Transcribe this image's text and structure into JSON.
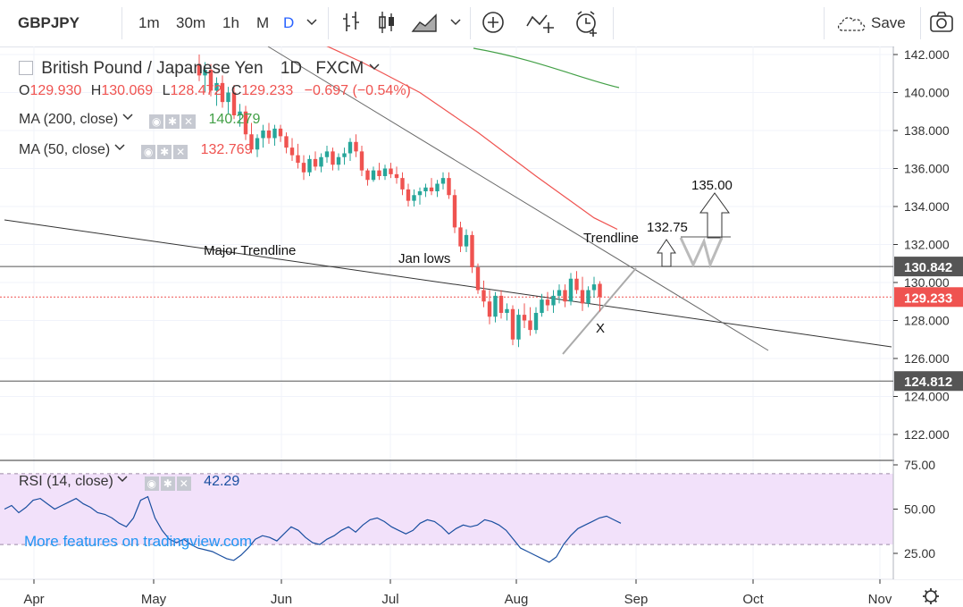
{
  "toolbar": {
    "symbol": "GBPJPY",
    "intervals": [
      "1m",
      "30m",
      "1h",
      "M",
      "D"
    ],
    "active_interval": "D",
    "save_label": "Save"
  },
  "legend": {
    "title": "British Pound / Japanese Yen",
    "timeframe": "1D",
    "exchange": "FXCM",
    "ohlc": {
      "o_label": "O",
      "o": "129.930",
      "h_label": "H",
      "h": "130.069",
      "l_label": "L",
      "l": "128.472",
      "c_label": "C",
      "c": "129.233",
      "change": "−0.697 (−0.54%)"
    },
    "ma200": {
      "label": "MA (200, close)",
      "value": "140.279"
    },
    "ma50": {
      "label": "MA (50, close)",
      "value": "132.769"
    },
    "rsi": {
      "label": "RSI (14, close)",
      "value": "42.29"
    }
  },
  "watermark": "More features on tradingview.com",
  "annotations": {
    "major_trendline": "Major Trendline",
    "jan_lows": "Jan lows",
    "trendline": "Trendline",
    "target1": "132.75",
    "target2": "135.00",
    "x_mark": "X"
  },
  "chart_data": {
    "type": "candlestick",
    "symbol": "GBPJPY",
    "price_axis": {
      "ticks": [
        "142.000",
        "140.000",
        "138.000",
        "136.000",
        "134.000",
        "132.000",
        "130.000",
        "128.000",
        "126.000",
        "124.000",
        "122.000"
      ],
      "range": [
        120.5,
        142.6
      ]
    },
    "time_axis": {
      "ticks": [
        "Apr",
        "May",
        "Jun",
        "Jul",
        "Aug",
        "Sep",
        "Oct",
        "Nov"
      ]
    },
    "price_markers": [
      {
        "label": "130.842",
        "value": 130.842,
        "kind": "horizontal-line",
        "color": "#555555"
      },
      {
        "label": "129.233",
        "value": 129.233,
        "kind": "last-price",
        "color": "#ef5350"
      },
      {
        "label": "124.812",
        "value": 124.812,
        "kind": "horizontal-line",
        "color": "#555555"
      }
    ],
    "candles": [
      {
        "o": 142.8,
        "h": 143.3,
        "l": 142.0,
        "c": 142.2
      },
      {
        "o": 142.2,
        "h": 142.6,
        "l": 141.2,
        "c": 141.5
      },
      {
        "o": 141.5,
        "h": 142.0,
        "l": 140.6,
        "c": 140.9
      },
      {
        "o": 140.9,
        "h": 141.6,
        "l": 140.0,
        "c": 141.2
      },
      {
        "o": 141.2,
        "h": 141.5,
        "l": 139.8,
        "c": 140.1
      },
      {
        "o": 140.1,
        "h": 140.8,
        "l": 139.3,
        "c": 140.5
      },
      {
        "o": 140.5,
        "h": 140.9,
        "l": 139.2,
        "c": 139.5
      },
      {
        "o": 139.5,
        "h": 140.3,
        "l": 138.9,
        "c": 140.0
      },
      {
        "o": 140.0,
        "h": 140.4,
        "l": 138.6,
        "c": 138.8
      },
      {
        "o": 138.8,
        "h": 139.4,
        "l": 138.2,
        "c": 139.0
      },
      {
        "o": 139.0,
        "h": 139.3,
        "l": 137.5,
        "c": 137.8
      },
      {
        "o": 137.8,
        "h": 138.4,
        "l": 136.8,
        "c": 137.0
      },
      {
        "o": 137.0,
        "h": 137.8,
        "l": 136.6,
        "c": 137.6
      },
      {
        "o": 137.6,
        "h": 138.3,
        "l": 137.1,
        "c": 138.0
      },
      {
        "o": 138.0,
        "h": 138.4,
        "l": 137.3,
        "c": 137.6
      },
      {
        "o": 137.6,
        "h": 138.3,
        "l": 137.2,
        "c": 138.1
      },
      {
        "o": 138.1,
        "h": 138.3,
        "l": 137.4,
        "c": 137.7
      },
      {
        "o": 137.7,
        "h": 137.9,
        "l": 136.8,
        "c": 137.1
      },
      {
        "o": 137.1,
        "h": 137.6,
        "l": 136.4,
        "c": 136.7
      },
      {
        "o": 136.7,
        "h": 137.3,
        "l": 136.0,
        "c": 136.3
      },
      {
        "o": 136.3,
        "h": 136.7,
        "l": 135.4,
        "c": 135.8
      },
      {
        "o": 135.8,
        "h": 136.7,
        "l": 135.6,
        "c": 136.5
      },
      {
        "o": 136.5,
        "h": 136.9,
        "l": 135.9,
        "c": 136.1
      },
      {
        "o": 136.1,
        "h": 136.8,
        "l": 135.8,
        "c": 136.6
      },
      {
        "o": 136.6,
        "h": 137.2,
        "l": 136.3,
        "c": 136.9
      },
      {
        "o": 136.9,
        "h": 137.1,
        "l": 135.9,
        "c": 136.2
      },
      {
        "o": 136.2,
        "h": 136.8,
        "l": 135.9,
        "c": 136.6
      },
      {
        "o": 136.6,
        "h": 137.1,
        "l": 136.2,
        "c": 136.8
      },
      {
        "o": 136.8,
        "h": 137.6,
        "l": 136.4,
        "c": 137.4
      },
      {
        "o": 137.4,
        "h": 137.8,
        "l": 136.6,
        "c": 136.9
      },
      {
        "o": 136.9,
        "h": 137.2,
        "l": 135.6,
        "c": 135.9
      },
      {
        "o": 135.9,
        "h": 136.0,
        "l": 135.1,
        "c": 135.4
      },
      {
        "o": 135.4,
        "h": 136.1,
        "l": 135.3,
        "c": 135.9
      },
      {
        "o": 135.9,
        "h": 136.3,
        "l": 135.4,
        "c": 135.6
      },
      {
        "o": 135.6,
        "h": 136.2,
        "l": 135.4,
        "c": 136.0
      },
      {
        "o": 136.0,
        "h": 136.3,
        "l": 135.5,
        "c": 135.7
      },
      {
        "o": 135.7,
        "h": 136.1,
        "l": 135.2,
        "c": 135.5
      },
      {
        "o": 135.5,
        "h": 135.8,
        "l": 134.6,
        "c": 134.9
      },
      {
        "o": 134.9,
        "h": 135.2,
        "l": 134.0,
        "c": 134.3
      },
      {
        "o": 134.3,
        "h": 134.9,
        "l": 134.0,
        "c": 134.6
      },
      {
        "o": 134.6,
        "h": 135.0,
        "l": 134.1,
        "c": 134.8
      },
      {
        "o": 134.8,
        "h": 135.2,
        "l": 134.5,
        "c": 135.0
      },
      {
        "o": 135.0,
        "h": 135.5,
        "l": 134.6,
        "c": 134.8
      },
      {
        "o": 134.8,
        "h": 135.4,
        "l": 134.5,
        "c": 135.2
      },
      {
        "o": 135.2,
        "h": 135.8,
        "l": 134.9,
        "c": 135.5
      },
      {
        "o": 135.5,
        "h": 135.8,
        "l": 134.4,
        "c": 134.6
      },
      {
        "o": 134.6,
        "h": 134.9,
        "l": 132.6,
        "c": 132.9
      },
      {
        "o": 132.9,
        "h": 133.2,
        "l": 131.6,
        "c": 131.9
      },
      {
        "o": 131.9,
        "h": 132.8,
        "l": 131.6,
        "c": 132.5
      },
      {
        "o": 132.5,
        "h": 132.7,
        "l": 130.5,
        "c": 130.8
      },
      {
        "o": 130.8,
        "h": 131.0,
        "l": 129.4,
        "c": 129.6
      },
      {
        "o": 129.6,
        "h": 130.1,
        "l": 128.7,
        "c": 129.0
      },
      {
        "o": 129.0,
        "h": 129.6,
        "l": 127.8,
        "c": 128.2
      },
      {
        "o": 128.2,
        "h": 129.5,
        "l": 127.9,
        "c": 129.3
      },
      {
        "o": 129.3,
        "h": 129.6,
        "l": 128.1,
        "c": 128.4
      },
      {
        "o": 128.4,
        "h": 128.9,
        "l": 128.0,
        "c": 128.6
      },
      {
        "o": 128.6,
        "h": 128.8,
        "l": 126.7,
        "c": 127.0
      },
      {
        "o": 127.0,
        "h": 128.6,
        "l": 126.6,
        "c": 128.3
      },
      {
        "o": 128.3,
        "h": 128.9,
        "l": 127.6,
        "c": 128.0
      },
      {
        "o": 128.0,
        "h": 128.7,
        "l": 127.2,
        "c": 127.5
      },
      {
        "o": 127.5,
        "h": 128.7,
        "l": 127.3,
        "c": 128.4
      },
      {
        "o": 128.4,
        "h": 129.4,
        "l": 128.2,
        "c": 129.1
      },
      {
        "o": 129.1,
        "h": 129.5,
        "l": 128.5,
        "c": 128.8
      },
      {
        "o": 128.8,
        "h": 129.6,
        "l": 128.4,
        "c": 129.3
      },
      {
        "o": 129.3,
        "h": 129.9,
        "l": 128.9,
        "c": 129.6
      },
      {
        "o": 129.6,
        "h": 129.9,
        "l": 128.7,
        "c": 129.0
      },
      {
        "o": 129.0,
        "h": 130.5,
        "l": 128.8,
        "c": 130.2
      },
      {
        "o": 130.2,
        "h": 130.6,
        "l": 129.4,
        "c": 129.6
      },
      {
        "o": 129.6,
        "h": 130.3,
        "l": 128.5,
        "c": 128.9
      },
      {
        "o": 128.9,
        "h": 129.8,
        "l": 128.7,
        "c": 129.6
      },
      {
        "o": 129.6,
        "h": 130.3,
        "l": 129.2,
        "c": 129.9
      },
      {
        "o": 129.93,
        "h": 130.069,
        "l": 128.472,
        "c": 129.233
      }
    ],
    "ma50": [
      [
        0,
        146.1
      ],
      [
        10,
        144.5
      ],
      [
        20,
        143.0
      ],
      [
        30,
        141.6
      ],
      [
        40,
        140.0
      ],
      [
        50,
        137.9
      ],
      [
        60,
        135.6
      ],
      [
        70,
        133.4
      ],
      [
        74,
        132.8
      ]
    ],
    "ma200": [
      [
        25,
        142.4
      ],
      [
        40,
        141.5
      ],
      [
        55,
        140.7
      ],
      [
        70,
        140.2
      ]
    ],
    "rsi": {
      "range": [
        10,
        80
      ],
      "ticks": [
        "75.00",
        "50.00",
        "25.00"
      ],
      "band": [
        30,
        70
      ],
      "values": [
        50,
        52,
        48,
        51,
        55,
        56,
        53,
        50,
        52,
        54,
        56,
        53,
        51,
        48,
        47,
        45,
        42,
        40,
        45,
        55,
        57,
        45,
        38,
        33,
        31,
        33,
        30,
        28,
        27,
        26,
        24,
        22,
        21,
        24,
        28,
        33,
        35,
        34,
        32,
        36,
        40,
        38,
        34,
        31,
        30,
        33,
        35,
        38,
        40,
        37,
        41,
        44,
        45,
        43,
        40,
        38,
        36,
        38,
        42,
        44,
        43,
        40,
        36,
        39,
        41,
        40,
        41,
        44,
        43,
        41,
        38,
        33,
        28,
        26,
        24,
        22,
        20,
        23,
        30,
        35,
        39,
        41,
        43,
        45,
        46,
        44,
        42
      ]
    }
  }
}
